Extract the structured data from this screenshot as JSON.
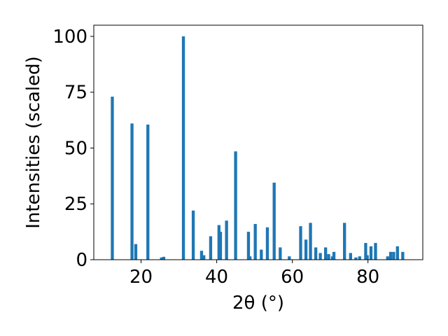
{
  "chart_data": {
    "type": "bar",
    "xlabel": "2θ (°)",
    "ylabel": "Intensities (scaled)",
    "xlim": [
      7.5,
      94.5
    ],
    "ylim": [
      0,
      105
    ],
    "xticks": [
      20,
      40,
      60,
      80
    ],
    "yticks": [
      0,
      25,
      50,
      75,
      100
    ],
    "grid": false,
    "bar_width": 0.8,
    "color": "#1f77b4",
    "series": [
      {
        "x": [
          12.4,
          17.6,
          18.6,
          21.8,
          25.4,
          26.0,
          31.2,
          33.8,
          36.0,
          36.6,
          38.4,
          40.6,
          41.0,
          42.6,
          45.0,
          48.4,
          48.8,
          50.2,
          51.8,
          53.4,
          55.2,
          56.8,
          59.2,
          62.2,
          63.6,
          64.8,
          66.2,
          67.4,
          68.8,
          69.6,
          70.6,
          71.0,
          73.8,
          75.4,
          76.8,
          77.8,
          79.4,
          79.8,
          80.8,
          82.0,
          85.2,
          86.0,
          86.8,
          87.8,
          89.2
        ],
        "values": [
          73,
          61,
          7,
          60.5,
          1,
          1.3,
          100,
          22,
          4,
          2,
          10.5,
          15.5,
          12.5,
          17.5,
          48.5,
          12.5,
          1.5,
          16,
          4.5,
          14.5,
          34.5,
          5.5,
          1.5,
          15,
          9,
          16.5,
          5.5,
          3,
          5.5,
          2.5,
          1.5,
          3.5,
          16.5,
          3,
          1,
          1.5,
          7.5,
          2,
          6,
          7.5,
          1.5,
          3.5,
          3.5,
          6,
          3.5
        ]
      }
    ]
  }
}
